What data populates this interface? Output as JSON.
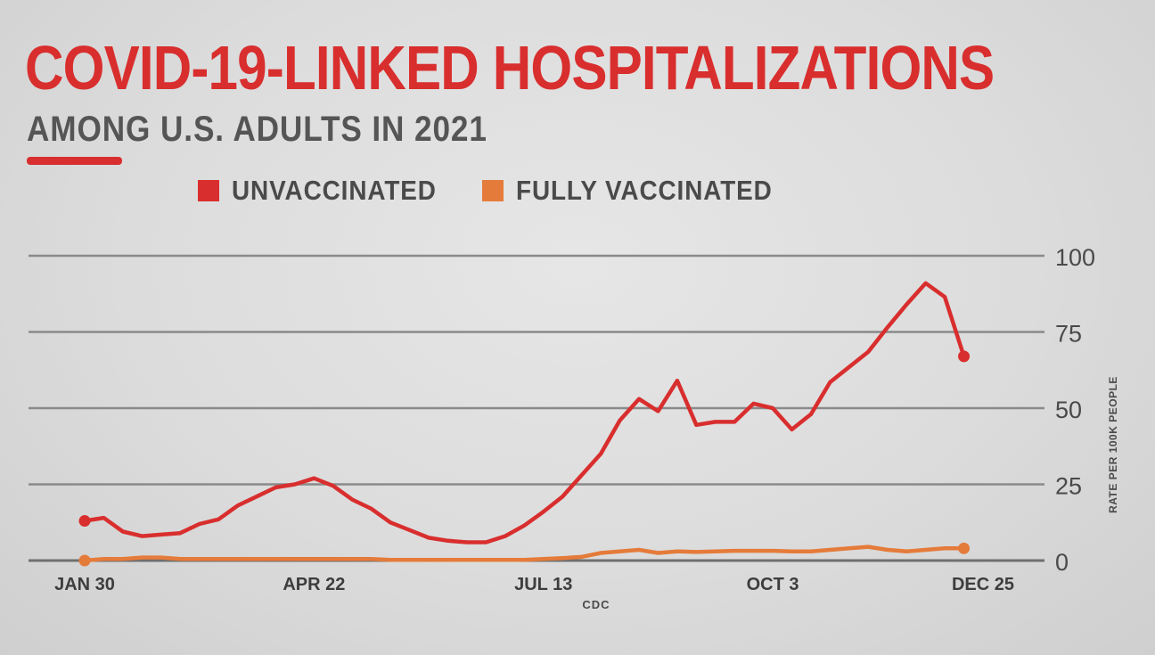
{
  "title": "COVID-19-LINKED HOSPITALIZATIONS",
  "subtitle": "AMONG U.S. ADULTS IN 2021",
  "colors": {
    "title": "#d92e2e",
    "unvaccinated": "#d92e2e",
    "fully_vaccinated": "#e57b3a",
    "grid": "#7c7c7c",
    "text": "#4a4a4a"
  },
  "chart_data": {
    "type": "line",
    "title": "COVID-19-LINKED HOSPITALIZATIONS",
    "subtitle": "AMONG U.S. ADULTS IN 2021",
    "xlabel": "CDC",
    "ylabel": "RATE PER 100K PEOPLE",
    "x_tick_labels": [
      "JAN 30",
      "APR 22",
      "JUL 13",
      "OCT 3",
      "DEC 25"
    ],
    "x_tick_positions": [
      0,
      12,
      24,
      36,
      47
    ],
    "y_ticks": [
      0,
      25,
      50,
      75,
      100
    ],
    "ylim": [
      0,
      100
    ],
    "xlim": [
      0,
      47
    ],
    "grid": true,
    "legend_position": "top",
    "series": [
      {
        "name": "UNVACCINATED",
        "color": "#d92e2e",
        "values": [
          13,
          14,
          9.5,
          8,
          8.5,
          9,
          12,
          13.5,
          18,
          21,
          24,
          25,
          27,
          24.5,
          20,
          17,
          12.5,
          10,
          7.5,
          6.5,
          6,
          6,
          8,
          11.5,
          16,
          21,
          28,
          35,
          46,
          53,
          49,
          59,
          44.5,
          45.5,
          45.5,
          51.5,
          50,
          43,
          48,
          58.5,
          63.5,
          68.5,
          76.5,
          84,
          91,
          86.5,
          67
        ],
        "end_markers": true
      },
      {
        "name": "FULLY VACCINATED",
        "color": "#e57b3a",
        "values": [
          0,
          0.5,
          0.5,
          1,
          1,
          0.5,
          0.5,
          0.5,
          0.5,
          0.5,
          0.5,
          0.5,
          0.5,
          0.5,
          0.5,
          0.5,
          0.2,
          0.2,
          0.2,
          0.2,
          0.2,
          0.2,
          0.2,
          0.2,
          0.5,
          0.8,
          1.2,
          2.5,
          3,
          3.5,
          2.5,
          3,
          2.8,
          3,
          3.2,
          3.2,
          3.2,
          3,
          3,
          3.5,
          4,
          4.5,
          3.5,
          3,
          3.5,
          4,
          4
        ],
        "end_markers": true
      }
    ]
  }
}
